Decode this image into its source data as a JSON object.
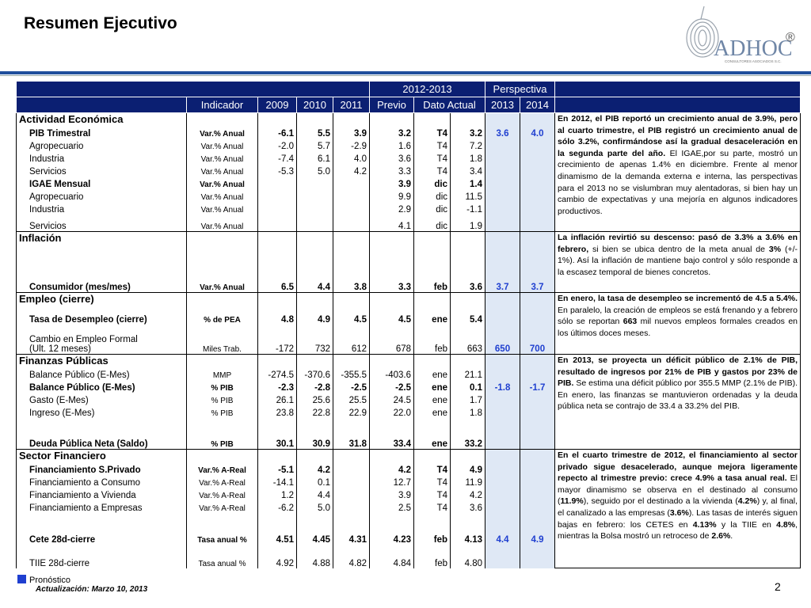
{
  "header": {
    "title": "Resumen Ejecutivo",
    "logo": "ADHOC",
    "logo_mark": "®",
    "logo_subtitle": "CONSULTORES ASOCIADOS S.C."
  },
  "table": {
    "header_color": "#0b1f72",
    "forecast_color": "#1f3fd0",
    "forecast_background": "#dfe8f5",
    "group_headers": [
      "2012-2013",
      "Perspectiva"
    ],
    "columns": [
      "Indicador",
      "2009",
      "2010",
      "2011",
      "Previo",
      "Dato Actual",
      "2013",
      "2014"
    ],
    "sections": [
      {
        "title": "Actividad Económica",
        "rows": [
          {
            "label": "PIB Trimestral",
            "bold": true,
            "cells": [
              "Var.% Anual",
              "-6.1",
              "5.5",
              "3.9",
              "3.2",
              "T4",
              "3.2",
              "3.6",
              "4.0"
            ]
          },
          {
            "label": "Agropecuario",
            "bold": false,
            "cells": [
              "Var.% Anual",
              "-2.0",
              "5.7",
              "-2.9",
              "1.6",
              "T4",
              "7.2",
              null,
              null
            ]
          },
          {
            "label": "Industria",
            "bold": false,
            "cells": [
              "Var.% Anual",
              "-7.4",
              "6.1",
              "4.0",
              "3.6",
              "T4",
              "1.8",
              null,
              null
            ]
          },
          {
            "label": "Servicios",
            "bold": false,
            "cells": [
              "Var.% Anual",
              "-5.3",
              "5.0",
              "4.2",
              "3.3",
              "T4",
              "3.4",
              null,
              null
            ]
          },
          {
            "label": "IGAE Mensual",
            "bold": true,
            "cells": [
              "Var.% Anual",
              null,
              null,
              null,
              "3.9",
              "dic",
              "1.4",
              null,
              null
            ]
          },
          {
            "label": "Agropecuario",
            "bold": false,
            "cells": [
              "Var.% Anual",
              null,
              null,
              null,
              "9.9",
              "dic",
              "11.5",
              null,
              null
            ]
          },
          {
            "label": "Industria",
            "bold": false,
            "cells": [
              "Var.% Anual",
              null,
              null,
              null,
              "2.9",
              "dic",
              "-1.1",
              null,
              null
            ]
          },
          {
            "label": "Servicios",
            "bold": false,
            "cells": [
              "Var.% Anual",
              null,
              null,
              null,
              "4.1",
              "dic",
              "1.9",
              null,
              null
            ]
          }
        ],
        "comment": [
          {
            "text": "En 2012, el PIB reportó un crecimiento anual de 3.9%, pero al cuarto trimestre, el PIB registró un crecimiento anual de sólo 3.2%, confirmándose así la gradual desaceleración en la segunda parte del año.",
            "bold": true
          },
          {
            "text": " El IGAE,por su parte, mostró un crecimiento de apenas 1.4% en diciembre. Frente al menor dinamismo de la demanda externa e interna, las perspectivas para el 2013 no se vislumbran muy alentadoras, si bien hay un cambio de expectativas y una mejoría en algunos indicadores productivos.",
            "bold": false
          }
        ]
      },
      {
        "title": "Inflación",
        "rows": [
          {
            "label": "Consumidor (mes/mes)",
            "bold": true,
            "cells": [
              "Var.% Anual",
              "6.5",
              "4.4",
              "3.8",
              "3.3",
              "feb",
              "3.6",
              "3.7",
              "3.7"
            ]
          }
        ],
        "comment": [
          {
            "text": "La inflación revirtió su descenso: pasó de 3.3% a 3.6% en febrero,",
            "bold": true
          },
          {
            "text": " si bien se ubica dentro de la meta anual de ",
            "bold": false
          },
          {
            "text": "3%",
            "bold": true
          },
          {
            "text": " (+/- 1%). Así la inflación de mantiene bajo control y sólo responde a la escasez temporal de bienes concretos.",
            "bold": false
          }
        ]
      },
      {
        "title": "Empleo (cierre)",
        "rows": [
          {
            "label": "Tasa de Desempleo (cierre)",
            "bold": true,
            "cells": [
              "% de PEA",
              "4.8",
              "4.9",
              "4.5",
              "4.5",
              "ene",
              "5.4",
              null,
              null
            ]
          },
          {
            "label": "Cambio en Empleo Formal\n(Ult. 12 meses)",
            "bold": false,
            "cells": [
              "Miles Trab.",
              "-172",
              "732",
              "612",
              "678",
              "feb",
              "663",
              "650",
              "700"
            ]
          }
        ],
        "comment": [
          {
            "text": "En enero, la tasa de desempleo se incrementó de 4.5 a 5.4%.",
            "bold": true
          },
          {
            "text": " En paralelo, la creación de empleos se está frenando y a febrero sólo se reportan ",
            "bold": false
          },
          {
            "text": "663",
            "bold": true
          },
          {
            "text": " mil nuevos empleos formales creados en los últimos doces meses.",
            "bold": false
          }
        ]
      },
      {
        "title": "Finanzas Públicas",
        "rows": [
          {
            "label": "Balance Público (E-Mes)",
            "bold": false,
            "cells": [
              "MMP",
              "-274.5",
              "-370.6",
              "-355.5",
              "-403.6",
              "ene",
              "21.1",
              null,
              null
            ]
          },
          {
            "label": "Balance Público (E-Mes)",
            "bold": true,
            "cells": [
              "% PIB",
              "-2.3",
              "-2.8",
              "-2.5",
              "-2.5",
              "ene",
              "0.1",
              "-1.8",
              "-1.7"
            ]
          },
          {
            "label": "Gasto (E-Mes)",
            "bold": false,
            "cells": [
              "% PIB",
              "26.1",
              "25.6",
              "25.5",
              "24.5",
              "ene",
              "1.7",
              null,
              null
            ]
          },
          {
            "label": "Ingreso (E-Mes)",
            "bold": false,
            "cells": [
              "% PIB",
              "23.8",
              "22.8",
              "22.9",
              "22.0",
              "ene",
              "1.8",
              null,
              null
            ]
          },
          {
            "label": "Deuda Pública Neta (Saldo)",
            "bold": true,
            "cells": [
              "% PIB",
              "30.1",
              "30.9",
              "31.8",
              "33.4",
              "ene",
              "33.2",
              null,
              null
            ]
          }
        ],
        "comment": [
          {
            "text": "En 2013, se proyecta un déficit público de 2.1% de PIB, resultado de ingresos por 21% de PIB y gastos por 23% de PIB.",
            "bold": true
          },
          {
            "text": " Se estima una déficit público por 355.5 MMP (2.1% de PIB). En enero, las finanzas se mantuvieron ordenadas y la deuda pública neta se contrajo de 33.4 a 33.2% del PIB.",
            "bold": false
          }
        ]
      },
      {
        "title": "Sector Financiero",
        "rows": [
          {
            "label": "Financiamiento S.Privado",
            "bold": true,
            "cells": [
              "Var.% A-Real",
              "-5.1",
              "4.2",
              null,
              "4.2",
              "T4",
              "4.9",
              null,
              null
            ]
          },
          {
            "label": "Financiamiento a Consumo",
            "bold": false,
            "cells": [
              "Var.% A-Real",
              "-14.1",
              "0.1",
              null,
              "12.7",
              "T4",
              "11.9",
              null,
              null
            ]
          },
          {
            "label": "Financiamiento a Vivienda",
            "bold": false,
            "cells": [
              "Var.% A-Real",
              "1.2",
              "4.4",
              null,
              "3.9",
              "T4",
              "4.2",
              null,
              null
            ]
          },
          {
            "label": "Financiamiento a Empresas",
            "bold": false,
            "cells": [
              "Var.% A-Real",
              "-6.2",
              "5.0",
              null,
              "2.5",
              "T4",
              "3.6",
              null,
              null
            ]
          },
          {
            "label": "Cete 28d-cierre",
            "bold": true,
            "cells": [
              "Tasa anual %",
              "4.51",
              "4.45",
              "4.31",
              "4.23",
              "feb",
              "4.13",
              "4.4",
              "4.9"
            ]
          },
          {
            "label": "TIIE 28d-cierre",
            "bold": false,
            "cells": [
              "Tasa anual %",
              "4.92",
              "4.88",
              "4.82",
              "4.84",
              "feb",
              "4.80",
              null,
              null
            ]
          }
        ],
        "comment": [
          {
            "text": "En el cuarto trimestre de 2012, el financiamiento al sector privado sigue desacelerado, aunque mejora ligeramente repecto al trimestre previo: crece 4.9% a tasa anual real.",
            "bold": true
          },
          {
            "text": " El mayor dinamismo se observa en el destinado al consumo (",
            "bold": false
          },
          {
            "text": "11.9%",
            "bold": true
          },
          {
            "text": "), seguido por el destinado a la vivienda (",
            "bold": false
          },
          {
            "text": "4.2%",
            "bold": true
          },
          {
            "text": ") y, al final, el canalizado a las empresas (",
            "bold": false
          },
          {
            "text": "3.6%",
            "bold": true
          },
          {
            "text": "). Las tasas de interés siguen bajas en febrero: los CETES en ",
            "bold": false
          },
          {
            "text": "4.13%",
            "bold": true
          },
          {
            "text": " y la TIIE en ",
            "bold": false
          },
          {
            "text": "4.8%",
            "bold": true
          },
          {
            "text": ", mientras la Bolsa mostró un retroceso de ",
            "bold": false
          },
          {
            "text": "2.6%",
            "bold": true
          },
          {
            "text": ".",
            "bold": false
          }
        ]
      }
    ]
  },
  "footer": {
    "legend": "Pronóstico",
    "updated": "Actualización:  Marzo 10, 2013",
    "page": "2"
  }
}
